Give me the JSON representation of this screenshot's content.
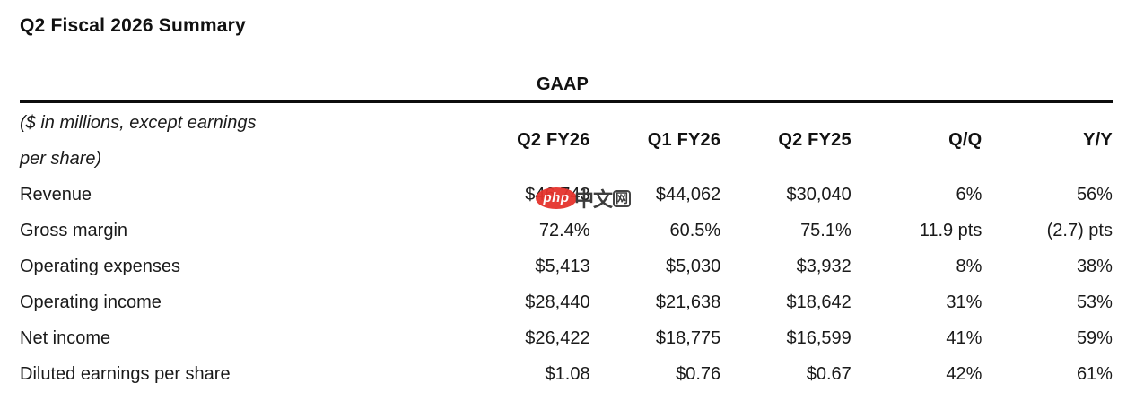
{
  "page": {
    "title": "Q2 Fiscal 2026 Summary"
  },
  "table": {
    "group_header": "GAAP",
    "note_line1": "($ in millions, except earnings",
    "note_line2": "per share)",
    "columns": [
      "Q2 FY26",
      "Q1 FY26",
      "Q2 FY25",
      "Q/Q",
      "Y/Y"
    ],
    "rows": [
      {
        "label": "Revenue",
        "values": [
          "$46,743",
          "$44,062",
          "$30,040",
          "6%",
          "56%"
        ]
      },
      {
        "label": "Gross margin",
        "values": [
          "72.4%",
          "60.5%",
          "75.1%",
          "11.9 pts",
          "(2.7) pts"
        ]
      },
      {
        "label": "Operating expenses",
        "values": [
          "$5,413",
          "$5,030",
          "$3,932",
          "8%",
          "38%"
        ]
      },
      {
        "label": "Operating income",
        "values": [
          "$28,440",
          "$21,638",
          "$18,642",
          "31%",
          "53%"
        ]
      },
      {
        "label": "Net income",
        "values": [
          "$26,422",
          "$18,775",
          "$16,599",
          "41%",
          "59%"
        ]
      },
      {
        "label": "Diluted earnings per share",
        "values": [
          "$1.08",
          "$0.76",
          "$0.67",
          "42%",
          "61%"
        ]
      }
    ]
  },
  "watermark": {
    "badge_text": "php",
    "cjk_text": "中文",
    "boxed_text": "网",
    "badge_color": "#e5332d",
    "text_color": "#333333"
  }
}
